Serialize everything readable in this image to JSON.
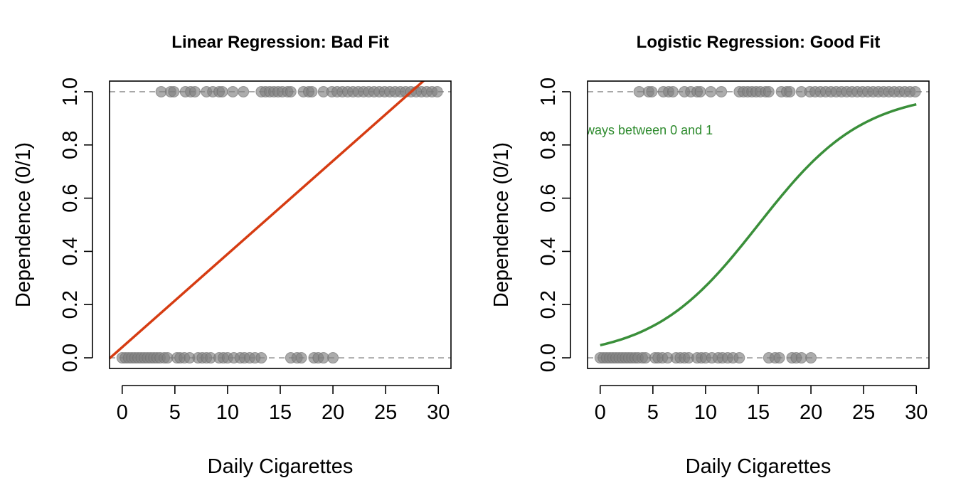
{
  "chart_data": [
    {
      "type": "scatter",
      "title": "Linear Regression: Bad Fit",
      "xlabel": "Daily Cigarettes",
      "ylabel": "Dependence (0/1)",
      "xlim": [
        -1.2,
        31.2
      ],
      "ylim": [
        -0.04,
        1.04
      ],
      "xticks": [
        0,
        5,
        10,
        15,
        20,
        25,
        30
      ],
      "yticks": [
        0.0,
        0.2,
        0.4,
        0.6,
        0.8,
        1.0
      ],
      "xtick_labels": [
        "0",
        "5",
        "10",
        "15",
        "20",
        "25",
        "30"
      ],
      "ytick_labels": [
        "0.0",
        "0.2",
        "0.4",
        "0.6",
        "0.8",
        "1.0"
      ],
      "reference_lines_y": [
        0,
        1
      ],
      "points_y0_x": [
        0,
        0.3,
        0.6,
        0.9,
        1.2,
        1.5,
        1.8,
        2.1,
        2.4,
        2.7,
        3.0,
        3.3,
        3.6,
        4.0,
        4.3,
        5.2,
        5.5,
        5.9,
        6.4,
        7.2,
        7.6,
        8.0,
        8.4,
        9.2,
        9.6,
        10.0,
        10.6,
        11.2,
        11.6,
        12.1,
        12.6,
        13.2,
        16.0,
        16.6,
        17.0,
        18.2,
        18.6,
        19.1,
        20.0
      ],
      "points_y1_x": [
        3.7,
        4.6,
        4.9,
        6.0,
        6.5,
        6.9,
        8.0,
        8.6,
        9.2,
        9.5,
        10.5,
        11.5,
        13.2,
        13.6,
        14.0,
        14.4,
        14.8,
        15.2,
        15.7,
        16.0,
        17.2,
        17.7,
        18.0,
        19.1,
        19.9,
        20.4,
        20.9,
        21.4,
        21.9,
        22.4,
        22.9,
        23.4,
        23.9,
        24.4,
        24.9,
        25.4,
        25.9,
        26.4,
        26.9,
        27.4,
        27.9,
        28.4,
        28.9,
        29.4,
        29.9
      ],
      "point_color": "#808080",
      "fit_type": "linear",
      "fit_intercept": 0.04,
      "fit_slope": 0.035,
      "fit_color": "#d63c12"
    },
    {
      "type": "scatter",
      "title": "Logistic Regression: Good Fit",
      "xlabel": "Daily Cigarettes",
      "ylabel": "Dependence (0/1)",
      "xlim": [
        -1.2,
        31.2
      ],
      "ylim": [
        -0.04,
        1.04
      ],
      "xticks": [
        0,
        5,
        10,
        15,
        20,
        25,
        30
      ],
      "yticks": [
        0.0,
        0.2,
        0.4,
        0.6,
        0.8,
        1.0
      ],
      "xtick_labels": [
        "0",
        "5",
        "10",
        "15",
        "20",
        "25",
        "30"
      ],
      "ytick_labels": [
        "0.0",
        "0.2",
        "0.4",
        "0.6",
        "0.8",
        "1.0"
      ],
      "reference_lines_y": [
        0,
        1
      ],
      "points_y0_x": [
        0,
        0.3,
        0.6,
        0.9,
        1.2,
        1.5,
        1.8,
        2.1,
        2.4,
        2.7,
        3.0,
        3.3,
        3.6,
        4.0,
        4.3,
        5.2,
        5.5,
        5.9,
        6.4,
        7.2,
        7.6,
        8.0,
        8.4,
        9.2,
        9.6,
        10.0,
        10.6,
        11.2,
        11.6,
        12.1,
        12.6,
        13.2,
        16.0,
        16.6,
        17.0,
        18.2,
        18.6,
        19.1,
        20.0
      ],
      "points_y1_x": [
        3.7,
        4.6,
        4.9,
        6.0,
        6.5,
        6.9,
        8.0,
        8.6,
        9.2,
        9.5,
        10.5,
        11.5,
        13.2,
        13.6,
        14.0,
        14.4,
        14.8,
        15.2,
        15.7,
        16.0,
        17.2,
        17.7,
        18.0,
        19.1,
        19.9,
        20.4,
        20.9,
        21.4,
        21.9,
        22.4,
        22.9,
        23.4,
        23.9,
        24.4,
        24.9,
        25.4,
        25.9,
        26.4,
        26.9,
        27.4,
        27.9,
        28.4,
        28.9,
        29.4,
        29.9
      ],
      "point_color": "#808080",
      "fit_type": "logistic",
      "fit_intercept": -3.0,
      "fit_slope": 0.2,
      "fit_color": "#3a8f3a",
      "annotation": "ways between 0 and 1",
      "annotation_x": -1.4,
      "annotation_y": 0.855
    }
  ]
}
